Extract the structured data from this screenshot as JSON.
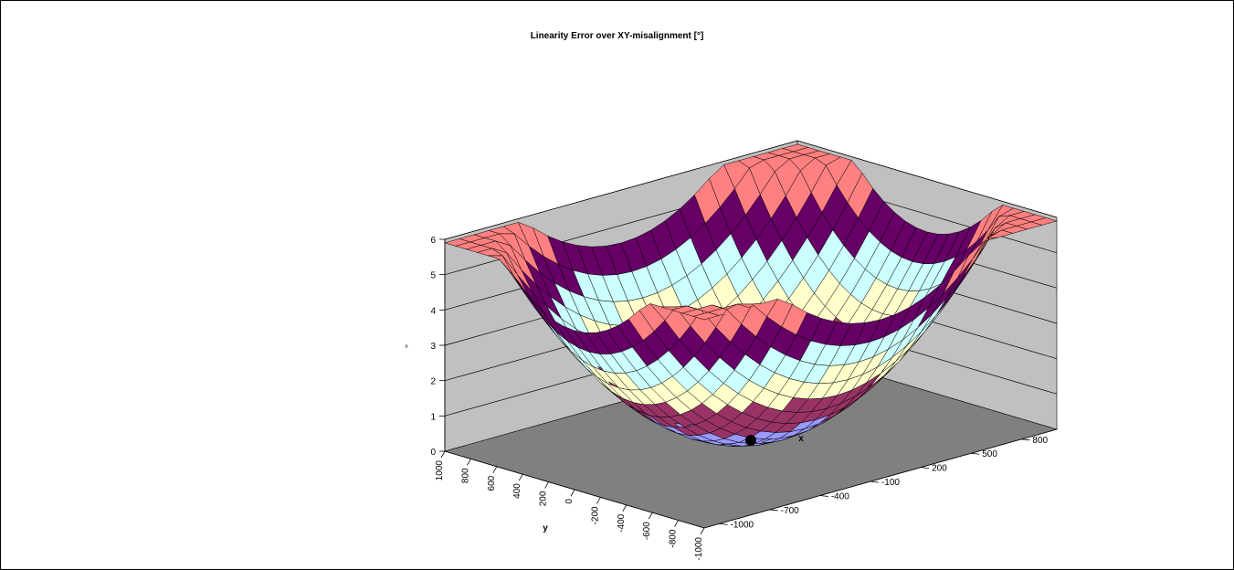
{
  "chart_data": {
    "type": "surface-3d",
    "title": "Linearity Error over XY-misalignment [°]",
    "zlabel": "°",
    "xlabel": "x",
    "ylabel": "y",
    "zlim": [
      0,
      6
    ],
    "z_ticks": [
      "0",
      "1",
      "2",
      "3",
      "4",
      "5",
      "6"
    ],
    "x_ticks": [
      "-1000",
      "-700",
      "-400",
      "-100",
      "200",
      "500",
      "800"
    ],
    "y_ticks": [
      "1000",
      "800",
      "600",
      "400",
      "200",
      "0",
      "-200",
      "-400",
      "-600",
      "-800",
      "-1000"
    ],
    "xlim": [
      -1000,
      1000
    ],
    "ylim": [
      -1000,
      1000
    ],
    "grid": true,
    "surface_model": "error ≈ 0.0000045 · (x² + y²) (approximate bowl-shaped surface)",
    "color_bands": [
      {
        "range": [
          0,
          1
        ],
        "color": "#9999ff"
      },
      {
        "range": [
          1,
          2
        ],
        "color": "#993366"
      },
      {
        "range": [
          2,
          3
        ],
        "color": "#ffffcc"
      },
      {
        "range": [
          3,
          4
        ],
        "color": "#ccffff"
      },
      {
        "range": [
          4,
          5
        ],
        "color": "#660066"
      },
      {
        "range": [
          5,
          6
        ],
        "color": "#ff8080"
      }
    ],
    "marker_point": {
      "x": 0,
      "y": 0,
      "z": 0,
      "label": ""
    }
  }
}
